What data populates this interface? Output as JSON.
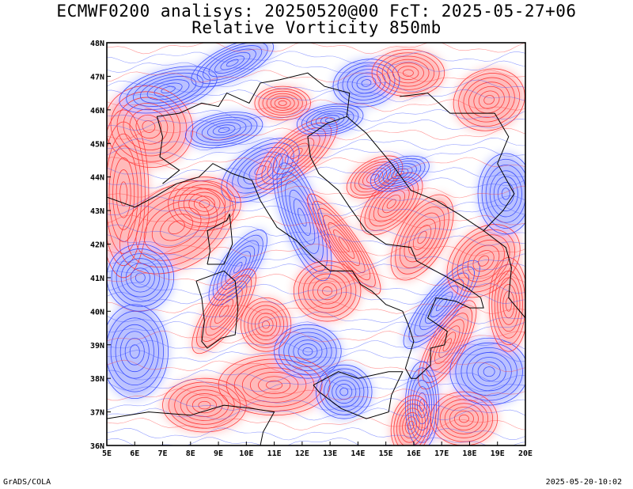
{
  "title_line1": "ECMWF0200 analisys: 20250520@00 FcT: 2025-05-27+06",
  "title_line2": "Relative Vorticity 850mb",
  "map": {
    "lon_range": [
      5,
      20
    ],
    "lat_range": [
      36,
      48
    ],
    "lon_ticks": [
      "5E",
      "6E",
      "7E",
      "8E",
      "9E",
      "10E",
      "11E",
      "12E",
      "13E",
      "14E",
      "15E",
      "16E",
      "17E",
      "18E",
      "19E",
      "20E"
    ],
    "lat_ticks": [
      "36N",
      "37N",
      "38N",
      "39N",
      "40N",
      "41N",
      "42N",
      "43N",
      "44N",
      "45N",
      "46N",
      "47N",
      "48N"
    ],
    "positive_color": "#ff3c3c",
    "negative_color": "#3c50ff",
    "coastline_color": "#000000"
  },
  "footer": {
    "credit": "GrADS/COLA",
    "timestamp": "2025-05-20-10:02"
  }
}
